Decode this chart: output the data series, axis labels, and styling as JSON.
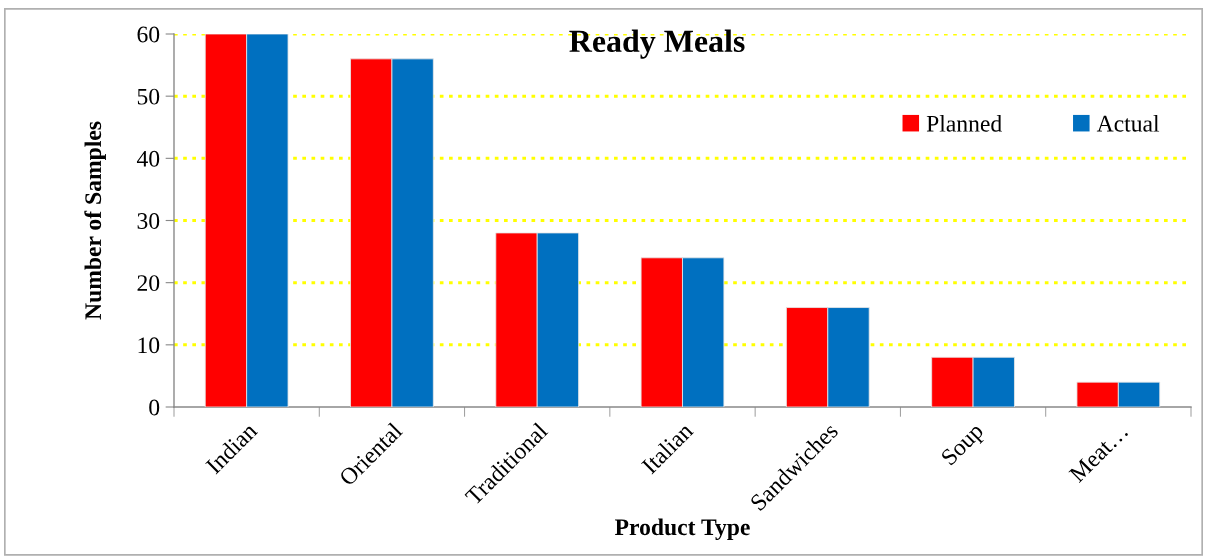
{
  "chart_data": {
    "type": "bar",
    "title": "Ready Meals",
    "xlabel": "Product Type",
    "ylabel": "Number of Samples",
    "categories": [
      "Indian",
      "Oriental",
      "Traditional",
      "Italian",
      "Sandwiches",
      "Soup",
      "Meat…"
    ],
    "series": [
      {
        "name": "Planned",
        "color": "#ff0000",
        "values": [
          60,
          56,
          28,
          24,
          16,
          8,
          4
        ]
      },
      {
        "name": "Actual",
        "color": "#0070c0",
        "values": [
          60,
          56,
          28,
          24,
          16,
          8,
          4
        ]
      }
    ],
    "ylim": [
      0,
      60
    ],
    "yticks": [
      0,
      10,
      20,
      30,
      40,
      50,
      60
    ],
    "grid": "y",
    "legend": "top right"
  }
}
